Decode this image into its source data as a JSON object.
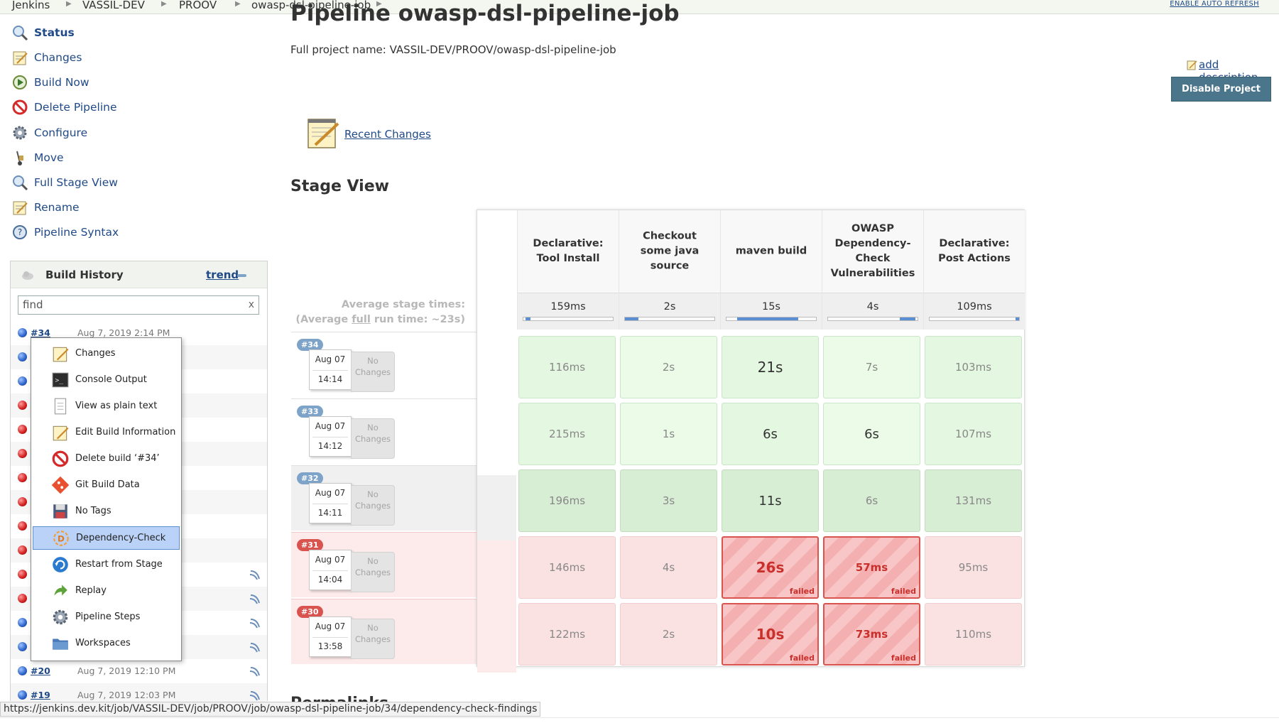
{
  "breadcrumb": [
    "Jenkins",
    "VASSIL-DEV",
    "PROOV",
    "owasp-dsl-pipeline-job"
  ],
  "auto_refresh": "ENABLE AUTO REFRESH",
  "sidebar": {
    "tasks": [
      "Status",
      "Changes",
      "Build Now",
      "Delete Pipeline",
      "Configure",
      "Move",
      "Full Stage View",
      "Rename",
      "Pipeline Syntax"
    ]
  },
  "build_history": {
    "title": "Build History",
    "trend": "trend",
    "find_value": "find",
    "find_clear": "x",
    "rows": [
      {
        "num": "#34",
        "date": "Aug 7, 2019 2:14 PM"
      },
      {
        "num": "#20",
        "date": "Aug 7, 2019 12:10 PM"
      },
      {
        "num": "#19",
        "date": "Aug 7, 2019 12:03 PM"
      }
    ]
  },
  "context_menu": {
    "items": [
      "Changes",
      "Console Output",
      "View as plain text",
      "Edit Build Information",
      "Delete build ‘#34’",
      "Git Build Data",
      "No Tags",
      "Dependency-Check",
      "Restart from Stage",
      "Replay",
      "Pipeline Steps",
      "Workspaces"
    ]
  },
  "main": {
    "title": "Pipeline owasp-dsl-pipeline-job",
    "full_name": "Full project name: VASSIL-DEV/PROOV/owasp-dsl-pipeline-job",
    "add_description": "add description",
    "disable_button": "Disable Project",
    "recent_changes": "Recent Changes",
    "stage_view_title": "Stage View",
    "permalinks_title": "Permalinks"
  },
  "stage_view": {
    "avg_label_line1": "Average stage times:",
    "avg_label_pre": "(Average ",
    "avg_label_full": "full",
    "avg_label_post": " run time: ~23s)",
    "stages": [
      {
        "line1": "Declarative:",
        "line2": "Tool Install",
        "avg": "159ms",
        "bar_start": 0.02,
        "bar_len": 0.06
      },
      {
        "line1": "Checkout",
        "line2": "some java",
        "line3": "source",
        "avg": "2s",
        "bar_start": 0.0,
        "bar_len": 0.15
      },
      {
        "line1": "maven build",
        "avg": "15s",
        "bar_start": 0.12,
        "bar_len": 0.68
      },
      {
        "line1": "OWASP",
        "line2": "Dependency-",
        "line3": "Check",
        "line4": "Vulnerabilities",
        "avg": "4s",
        "bar_start": 0.8,
        "bar_len": 0.18
      },
      {
        "line1": "Declarative:",
        "line2": "Post Actions",
        "avg": "109ms",
        "bar_start": 0.96,
        "bar_len": 0.04
      }
    ],
    "runs": [
      {
        "num": "#34",
        "date": "Aug 07",
        "time": "14:14",
        "changes": "No Changes",
        "status": "ok",
        "cells": [
          "116ms",
          "2s",
          "21s",
          "7s",
          "103ms"
        ]
      },
      {
        "num": "#33",
        "date": "Aug 07",
        "time": "14:12",
        "changes": "No Changes",
        "status": "ok",
        "cells": [
          "215ms",
          "1s",
          "6s",
          "6s",
          "107ms"
        ]
      },
      {
        "num": "#32",
        "date": "Aug 07",
        "time": "14:11",
        "changes": "No Changes",
        "status": "alt",
        "cells": [
          "196ms",
          "3s",
          "11s",
          "6s",
          "131ms"
        ]
      },
      {
        "num": "#31",
        "date": "Aug 07",
        "time": "14:04",
        "changes": "No Changes",
        "status": "fail",
        "cells": [
          "146ms",
          "4s",
          "26s",
          "57ms",
          "95ms"
        ]
      },
      {
        "num": "#30",
        "date": "Aug 07",
        "time": "13:58",
        "changes": "No Changes",
        "status": "fail",
        "cells": [
          "122ms",
          "2s",
          "10s",
          "73ms",
          "110ms"
        ]
      }
    ],
    "failed_label": "failed"
  },
  "statusbar": "https://jenkins.dev.kit/job/VASSIL-DEV/job/PROOV/job/owasp-dsl-pipeline-job/34/dependency-check-findings",
  "colors": {
    "link": "#204a87",
    "button": "#4b758b",
    "failed": "#d9534f",
    "success": "#e4f7e0"
  }
}
